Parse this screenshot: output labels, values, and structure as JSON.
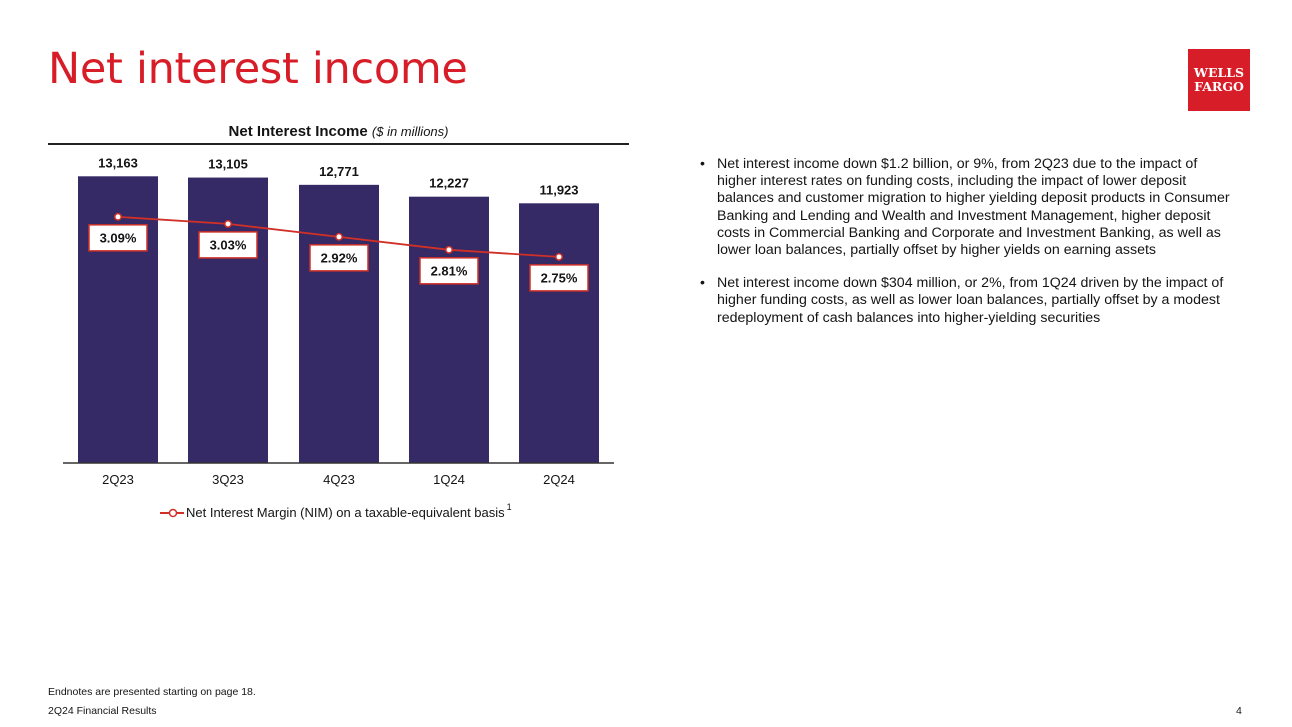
{
  "page": {
    "title": "Net interest income",
    "logo_line1": "WELLS",
    "logo_line2": "FARGO",
    "endnotes": "Endnotes are presented starting on page 18.",
    "footer": "2Q24 Financial Results",
    "page_number": "4"
  },
  "bullets": [
    "Net interest income down $1.2 billion, or 9%, from 2Q23 due to the impact of higher interest rates on funding costs, including the impact of lower deposit balances and customer migration to higher yielding deposit products in Consumer Banking and Lending and Wealth and Investment Management, higher deposit costs in Commercial Banking and Corporate and Investment Banking, as well as lower loan balances, partially offset by higher yields on earning assets",
    "Net interest income down $304 million, or 2%, from 1Q24 driven by the impact of higher funding costs, as well as lower loan balances, partially offset by a modest redeployment of cash balances into higher-yielding securities"
  ],
  "bullet_symbol": "•",
  "colors": {
    "brand_red": "#d71e28",
    "bar": "#352a65",
    "line": "#d03027"
  },
  "chart_data": {
    "type": "bar",
    "title": "Net Interest Income",
    "title_unit": "($ in millions)",
    "categories": [
      "2Q23",
      "3Q23",
      "4Q23",
      "1Q24",
      "2Q24"
    ],
    "series": [
      {
        "type": "bar",
        "values": [
          13163,
          13105,
          12771,
          12227,
          11923
        ],
        "labels": [
          "13,163",
          "13,105",
          "12,771",
          "12,227",
          "11,923"
        ]
      },
      {
        "type": "line",
        "name": "Net Interest Margin (NIM) on a taxable-equivalent basis",
        "footnote_ref": "1",
        "values": [
          3.09,
          3.03,
          2.92,
          2.81,
          2.75
        ],
        "labels": [
          "3.09%",
          "3.03%",
          "2.92%",
          "2.81%",
          "2.75%"
        ]
      }
    ],
    "ylim": [
      0,
      14600
    ],
    "line_ylim": [
      1.0,
      3.7
    ],
    "grid": false,
    "legend": "bottom"
  }
}
